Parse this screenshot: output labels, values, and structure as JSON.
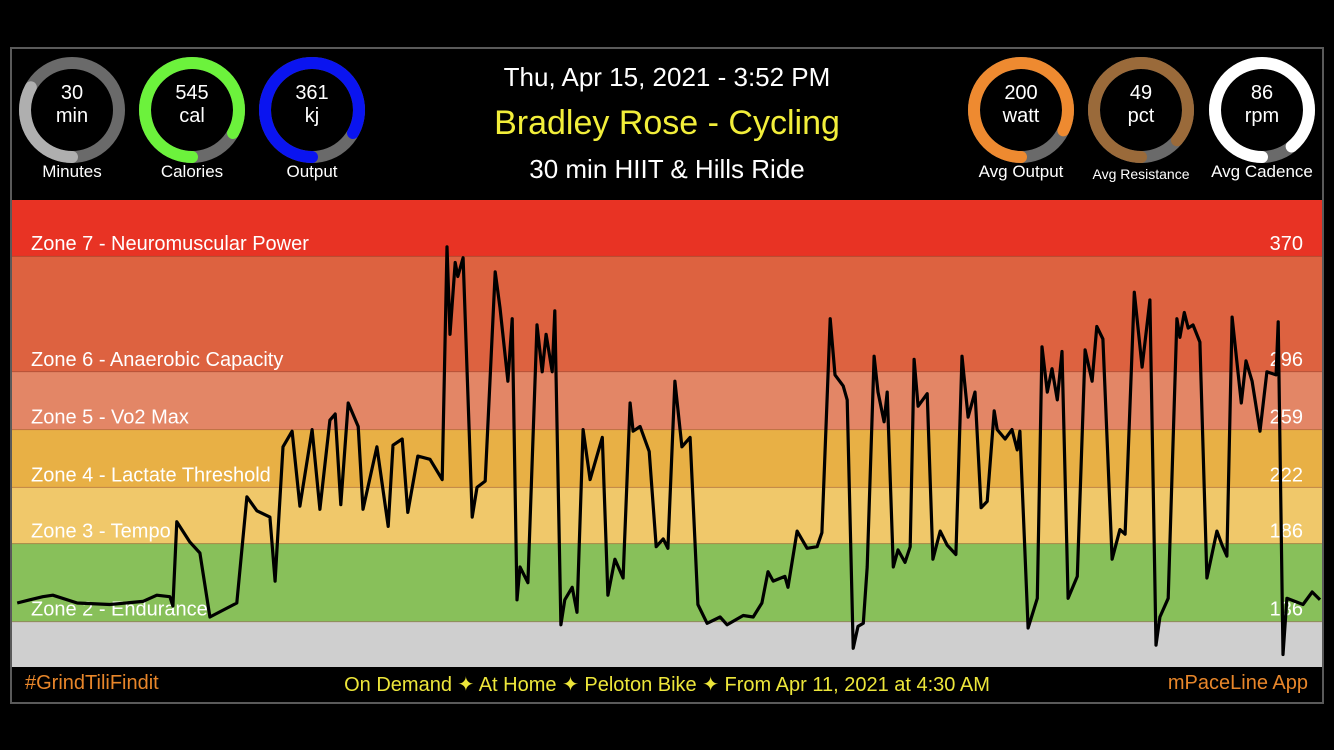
{
  "header": {
    "date": "Thu, Apr 15, 2021 - 3:52 PM",
    "title": "Bradley Rose - Cycling",
    "class_name": "30 min HIIT & Hills Ride"
  },
  "gauges_left": [
    {
      "value": "30",
      "unit": "min",
      "label": "Minutes",
      "fill": 0.33,
      "color": "#AFAFAF"
    },
    {
      "value": "545",
      "unit": "cal",
      "label": "Calories",
      "fill": 0.83,
      "color": "#6CF23C"
    },
    {
      "value": "361",
      "unit": "kj",
      "label": "Output",
      "fill": 0.83,
      "color": "#0A14F0"
    }
  ],
  "gauges_right": [
    {
      "value": "200",
      "unit": "watt",
      "label": "Avg Output",
      "fill": 0.82,
      "color": "#EE8A30"
    },
    {
      "value": "49",
      "unit": "pct",
      "label": "Avg Resistance",
      "fill": 0.86,
      "color": "#9A6A3A"
    },
    {
      "value": "86",
      "unit": "rpm",
      "label": "Avg Cadence",
      "fill": 0.89,
      "color": "#FFFFFF"
    }
  ],
  "gauge_track_color": "#6A6A6A",
  "footer": {
    "hashtag": "#GrindTiliFindit",
    "info": "On Demand ✦ At Home  ✦ Peloton Bike ✦ From Apr 11, 2021 at 4:30 AM",
    "app": "mPaceLine App"
  },
  "chart_data": {
    "type": "line",
    "title": "",
    "xlabel": "",
    "ylabel": "",
    "xlim": [
      0,
      30
    ],
    "ylim": [
      107,
      406
    ],
    "line_color": "#000000",
    "zones": [
      {
        "name": "Zone 7 - Neuromuscular Power",
        "threshold": 370,
        "color": "#E83324"
      },
      {
        "name": "Zone 6 - Anaerobic Capacity",
        "threshold": 296,
        "color": "#DD6240"
      },
      {
        "name": "Zone 5 - Vo2 Max",
        "threshold": 259,
        "color": "#E38666"
      },
      {
        "name": "Zone 4 - Lactate Threshold",
        "threshold": 222,
        "color": "#E8B045"
      },
      {
        "name": "Zone 3 - Tempo",
        "threshold": 186,
        "color": "#F0C86A"
      },
      {
        "name": "Zone 2 - Endurance",
        "threshold": 136,
        "color": "#88C05A"
      },
      {
        "name": "",
        "threshold": 107,
        "color": "#CFCFCF"
      }
    ],
    "x": [
      0.05,
      0.34,
      0.64,
      0.87,
      1.43,
      2.18,
      2.94,
      3.26,
      3.56,
      3.63,
      3.72,
      4.02,
      4.25,
      4.48,
      5.1,
      5.33,
      5.56,
      5.86,
      5.98,
      6.16,
      6.37,
      6.55,
      6.83,
      7.01,
      7.24,
      7.36,
      7.49,
      7.66,
      7.89,
      8.0,
      8.32,
      8.58,
      8.69,
      8.9,
      9.03,
      9.26,
      9.54,
      9.82,
      9.93,
      10.0,
      10.12,
      10.18,
      10.3,
      10.51,
      10.62,
      10.81,
      11.04,
      11.15,
      11.33,
      11.43,
      11.54,
      11.61,
      11.79,
      12.0,
      12.12,
      12.21,
      12.35,
      12.41,
      12.55,
      12.64,
      12.81,
      12.92,
      13.06,
      13.22,
      13.5,
      13.63,
      13.79,
      13.98,
      14.14,
      14.21,
      14.37,
      14.58,
      14.74,
      14.9,
      15.01,
      15.17,
      15.33,
      15.52,
      15.7,
      15.91,
      16.21,
      16.37,
      16.74,
      16.97,
      17.17,
      17.31,
      17.43,
      17.7,
      17.77,
      17.98,
      18.21,
      18.44,
      18.55,
      18.74,
      18.85,
      19.04,
      19.13,
      19.27,
      19.38,
      19.5,
      19.59,
      19.75,
      19.84,
      19.98,
      20.05,
      20.19,
      20.3,
      20.46,
      20.58,
      20.67,
      20.76,
      20.97,
      21.1,
      21.27,
      21.43,
      21.63,
      21.77,
      21.91,
      22.07,
      22.21,
      22.35,
      22.51,
      22.58,
      22.76,
      22.92,
      23.04,
      23.1,
      23.29,
      23.5,
      23.61,
      23.73,
      23.84,
      23.96,
      24.07,
      24.21,
      24.42,
      24.6,
      24.76,
      24.87,
      25.01,
      25.22,
      25.4,
      25.52,
      25.73,
      25.91,
      26.09,
      26.23,
      26.32,
      26.51,
      26.71,
      26.78,
      26.88,
      26.97,
      27.08,
      27.24,
      27.4,
      27.63,
      27.75,
      27.86,
      27.98,
      28.19,
      28.3,
      28.44,
      28.62,
      28.78,
      28.99,
      29.04,
      29.15,
      29.24,
      29.61,
      29.82,
      30.0
    ],
    "values": [
      148,
      150,
      152,
      153,
      148,
      147,
      149,
      153,
      152,
      146,
      200,
      187,
      180,
      139,
      148,
      216,
      207,
      203,
      162,
      248,
      258,
      210,
      259,
      208,
      265,
      269,
      211,
      276,
      261,
      208,
      248,
      197,
      249,
      253,
      206,
      242,
      240,
      227,
      376,
      320,
      366,
      357,
      369,
      203,
      222,
      226,
      360,
      337,
      290,
      330,
      150,
      171,
      161,
      326,
      296,
      320,
      296,
      335,
      134,
      150,
      158,
      142,
      259,
      227,
      254,
      153,
      176,
      164,
      276,
      258,
      261,
      245,
      184,
      189,
      183,
      290,
      248,
      254,
      147,
      135,
      139,
      134,
      140,
      139,
      148,
      168,
      162,
      165,
      158,
      194,
      183,
      184,
      193,
      330,
      294,
      287,
      278,
      119,
      133,
      135,
      171,
      306,
      283,
      264,
      283,
      171,
      182,
      174,
      184,
      304,
      274,
      282,
      176,
      194,
      185,
      179,
      306,
      267,
      283,
      209,
      213,
      271,
      259,
      253,
      259,
      246,
      258,
      132,
      151,
      312,
      283,
      298,
      278,
      309,
      151,
      165,
      310,
      290,
      325,
      317,
      176,
      195,
      192,
      347,
      299,
      342,
      121,
      139,
      151,
      330,
      318,
      334,
      324,
      326,
      315,
      164,
      194,
      185,
      178,
      331,
      276,
      303,
      290,
      258,
      296,
      294,
      328,
      115,
      151,
      147,
      155,
      150
    ]
  }
}
